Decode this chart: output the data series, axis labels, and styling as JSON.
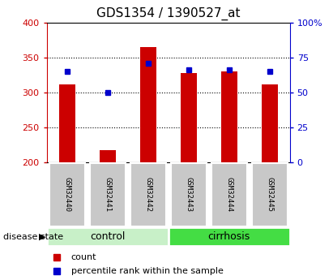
{
  "title": "GDS1354 / 1390527_at",
  "samples": [
    "GSM32440",
    "GSM32441",
    "GSM32442",
    "GSM32443",
    "GSM32444",
    "GSM32445"
  ],
  "count_values": [
    312,
    218,
    365,
    328,
    330,
    312
  ],
  "percentile_values": [
    65,
    50,
    71,
    66,
    66,
    65
  ],
  "count_base": 200,
  "left_ylim": [
    200,
    400
  ],
  "right_ylim": [
    0,
    100
  ],
  "left_yticks": [
    200,
    250,
    300,
    350,
    400
  ],
  "right_yticks": [
    0,
    25,
    50,
    75,
    100
  ],
  "right_yticklabels": [
    "0",
    "25",
    "50",
    "75",
    "100%"
  ],
  "disease_groups": [
    {
      "label": "control",
      "indices": [
        0,
        1,
        2
      ],
      "color": "#c8f0c8"
    },
    {
      "label": "cirrhosis",
      "indices": [
        3,
        4,
        5
      ],
      "color": "#44dd44"
    }
  ],
  "bar_color": "#cc0000",
  "dot_color": "#0000cc",
  "sample_box_color": "#c8c8c8",
  "title_fontsize": 11,
  "legend_labels": [
    "count",
    "percentile rank within the sample"
  ],
  "disease_state_label": "disease state",
  "bg_color": "#ffffff",
  "left_axis_color": "#cc0000",
  "right_axis_color": "#0000cc",
  "bar_width": 0.4
}
